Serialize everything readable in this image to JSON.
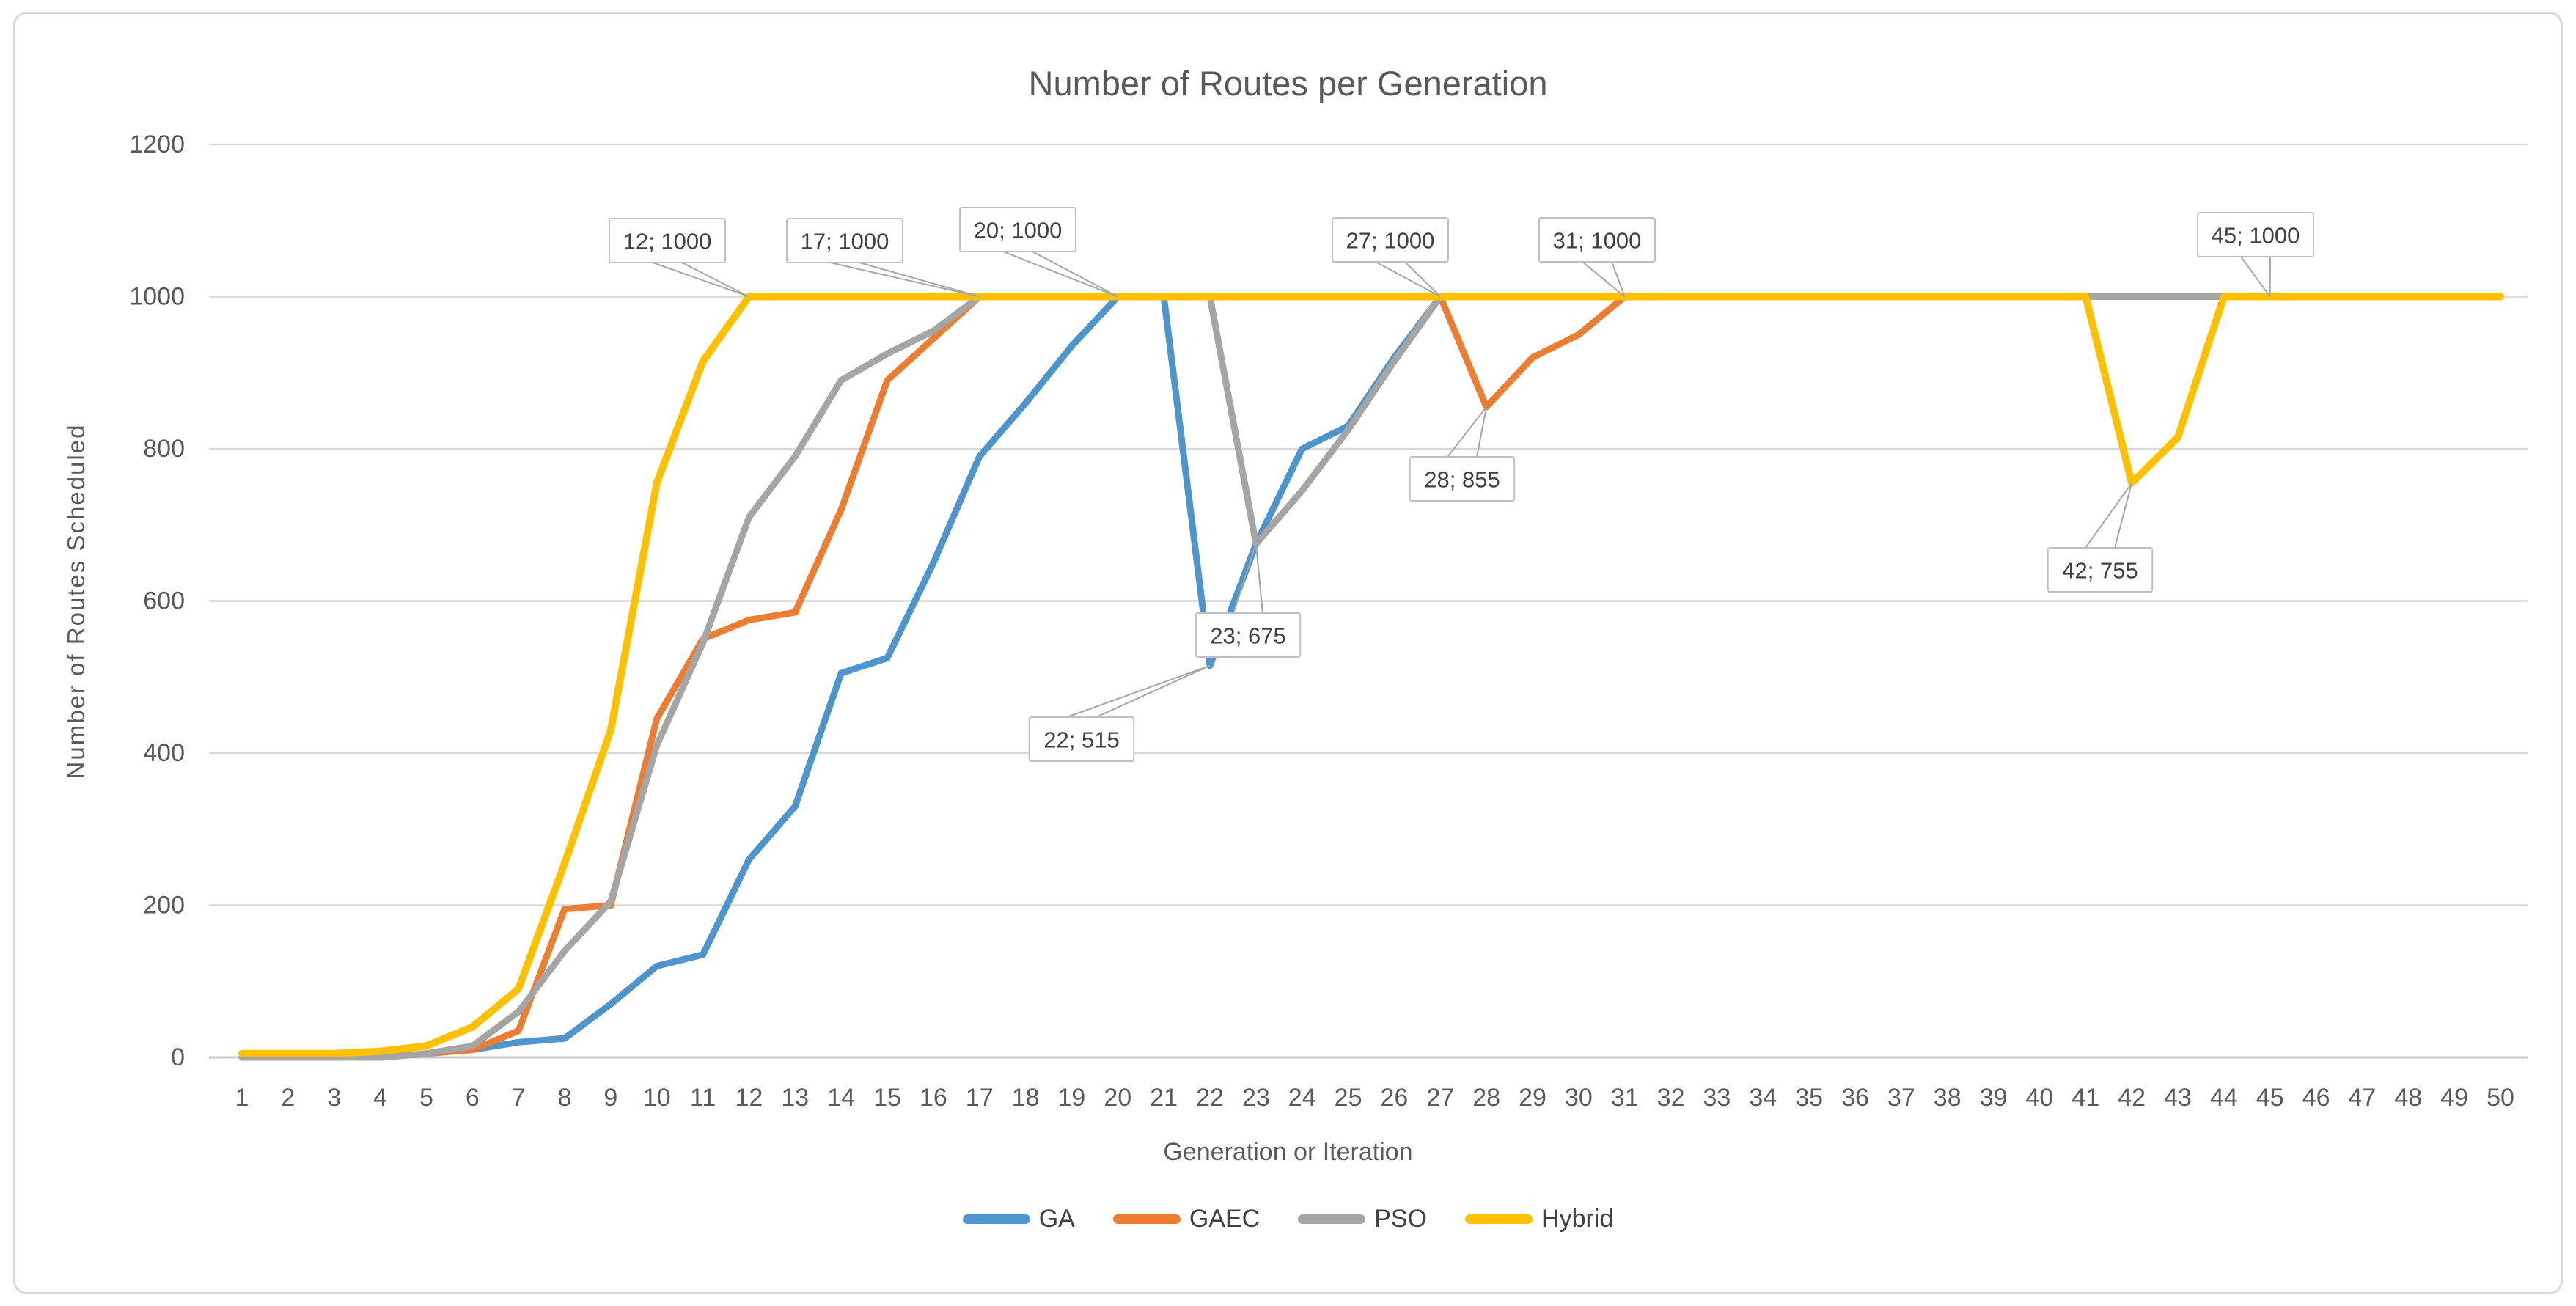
{
  "chart_data": {
    "type": "line",
    "title": "Number of Routes per Generation",
    "xlabel": "Generation or Iteration",
    "ylabel": "Number of Routes Scheduled",
    "x": [
      1,
      2,
      3,
      4,
      5,
      6,
      7,
      8,
      9,
      10,
      11,
      12,
      13,
      14,
      15,
      16,
      17,
      18,
      19,
      20,
      21,
      22,
      23,
      24,
      25,
      26,
      27,
      28,
      29,
      30,
      31,
      32,
      33,
      34,
      35,
      36,
      37,
      38,
      39,
      40,
      41,
      42,
      43,
      44,
      45,
      46,
      47,
      48,
      49,
      50
    ],
    "ylim": [
      0,
      1200
    ],
    "yticks": [
      0,
      200,
      400,
      600,
      800,
      1000,
      1200
    ],
    "grid": "horizontal",
    "legend_position": "bottom",
    "series": [
      {
        "name": "GA",
        "color": "#4E95CE",
        "values": [
          0,
          0,
          0,
          0,
          5,
          10,
          20,
          25,
          70,
          120,
          135,
          260,
          330,
          505,
          525,
          650,
          790,
          860,
          935,
          1000,
          1000,
          515,
          675,
          800,
          830,
          920,
          1000,
          1000,
          1000,
          1000,
          1000,
          1000,
          1000,
          1000,
          1000,
          1000,
          1000,
          1000,
          1000,
          1000,
          1000,
          1000,
          1000,
          1000,
          1000,
          1000,
          1000,
          1000,
          1000,
          1000
        ]
      },
      {
        "name": "GAEC",
        "color": "#ED7D31",
        "values": [
          0,
          0,
          0,
          0,
          5,
          10,
          35,
          195,
          200,
          445,
          550,
          575,
          585,
          720,
          890,
          945,
          1000,
          1000,
          1000,
          1000,
          1000,
          1000,
          1000,
          1000,
          1000,
          1000,
          1000,
          855,
          920,
          950,
          1000,
          1000,
          1000,
          1000,
          1000,
          1000,
          1000,
          1000,
          1000,
          1000,
          1000,
          1000,
          1000,
          1000,
          1000,
          1000,
          1000,
          1000,
          1000,
          1000
        ]
      },
      {
        "name": "PSO",
        "color": "#A5A5A5",
        "values": [
          0,
          0,
          0,
          0,
          5,
          15,
          60,
          140,
          205,
          410,
          545,
          710,
          790,
          890,
          925,
          955,
          1000,
          1000,
          1000,
          1000,
          1000,
          1000,
          675,
          745,
          825,
          915,
          1000,
          1000,
          1000,
          1000,
          1000,
          1000,
          1000,
          1000,
          1000,
          1000,
          1000,
          1000,
          1000,
          1000,
          1000,
          1000,
          1000,
          1000,
          1000,
          1000,
          1000,
          1000,
          1000,
          1000
        ]
      },
      {
        "name": "Hybrid",
        "color": "#FFC000",
        "values": [
          5,
          5,
          5,
          8,
          15,
          40,
          90,
          255,
          430,
          755,
          915,
          1000,
          1000,
          1000,
          1000,
          1000,
          1000,
          1000,
          1000,
          1000,
          1000,
          1000,
          1000,
          1000,
          1000,
          1000,
          1000,
          1000,
          1000,
          1000,
          1000,
          1000,
          1000,
          1000,
          1000,
          1000,
          1000,
          1000,
          1000,
          1000,
          1000,
          755,
          815,
          1000,
          1000,
          1000,
          1000,
          1000,
          1000,
          1000
        ]
      }
    ],
    "annotations": [
      {
        "label": "12; 1000",
        "gen": 12,
        "value": 1000,
        "box": [
          910,
          328
        ]
      },
      {
        "label": "17; 1000",
        "gen": 17,
        "value": 1000,
        "box": [
          1152,
          328
        ]
      },
      {
        "label": "20; 1000",
        "gen": 20,
        "value": 1000,
        "box": [
          1388,
          313
        ]
      },
      {
        "label": "27; 1000",
        "gen": 27,
        "value": 1000,
        "box": [
          1896,
          327
        ]
      },
      {
        "label": "31; 1000",
        "gen": 31,
        "value": 1000,
        "box": [
          2178,
          327
        ]
      },
      {
        "label": "45; 1000",
        "gen": 45,
        "value": 1000,
        "box": [
          3076,
          320
        ]
      },
      {
        "label": "28; 855",
        "gen": 28,
        "value": 855,
        "box": [
          1994,
          653
        ]
      },
      {
        "label": "42; 755",
        "gen": 42,
        "value": 755,
        "box": [
          2864,
          777
        ]
      },
      {
        "label": "23; 675",
        "gen": 23,
        "value": 675,
        "box": [
          1702,
          866
        ]
      },
      {
        "label": "22; 515",
        "gen": 22,
        "value": 515,
        "box": [
          1475,
          1008
        ]
      }
    ],
    "colors": {
      "gridline": "#D9D9D9",
      "axis_line": "#C9C9C9",
      "tick_text": "#595959",
      "callout_border": "#BFBFBF",
      "callout_text": "#404040",
      "leader_line": "#A6A6A6"
    }
  }
}
